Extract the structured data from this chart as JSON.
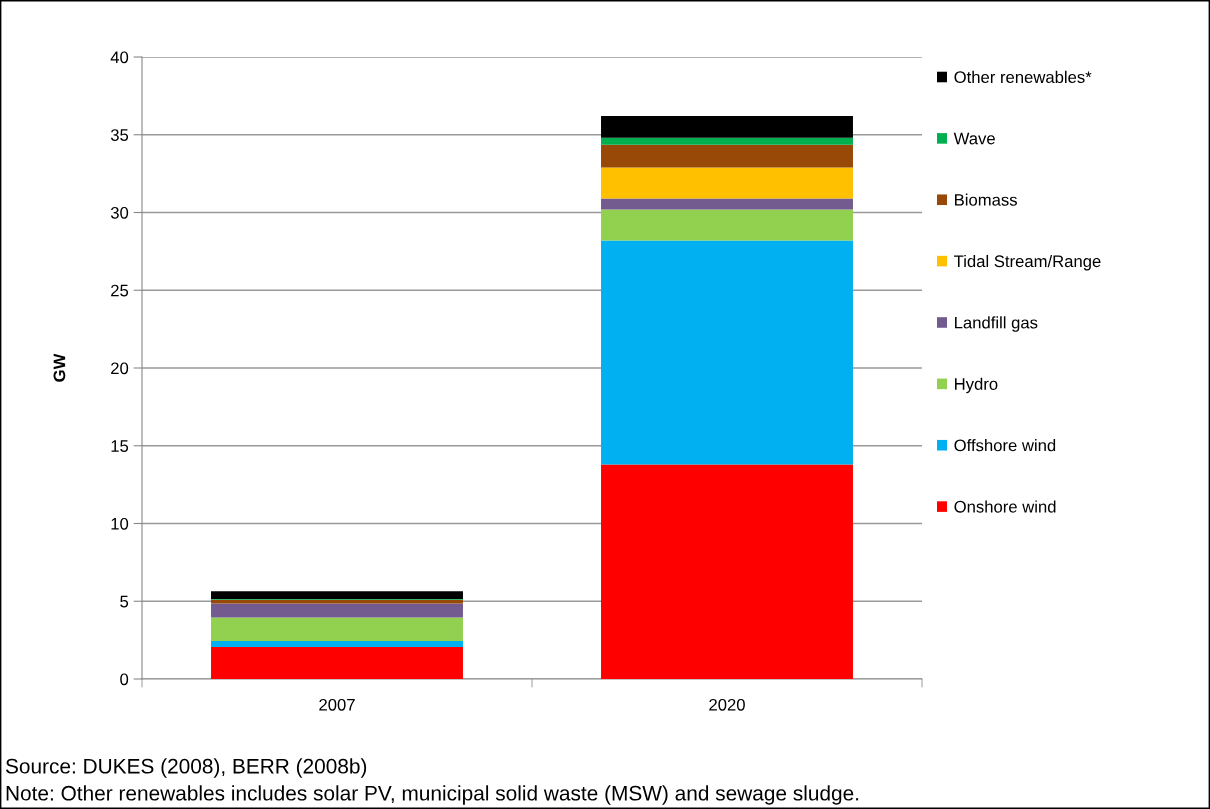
{
  "chart_data": {
    "type": "bar",
    "stacked": true,
    "ylabel": "GW",
    "categories": [
      "2007",
      "2020"
    ],
    "series": [
      {
        "name": "Onshore wind",
        "color": "#ff0000",
        "values": [
          2.05,
          13.8
        ]
      },
      {
        "name": "Offshore wind",
        "color": "#00b0f0",
        "values": [
          0.4,
          14.4
        ]
      },
      {
        "name": "Hydro",
        "color": "#92d050",
        "values": [
          1.5,
          2.0
        ]
      },
      {
        "name": "Landfill gas",
        "color": "#735a8f",
        "values": [
          0.9,
          0.7
        ]
      },
      {
        "name": "Tidal Stream/Range",
        "color": "#ffc000",
        "values": [
          0,
          2.0
        ]
      },
      {
        "name": "Biomass",
        "color": "#984807",
        "values": [
          0.25,
          1.45
        ]
      },
      {
        "name": "Wave",
        "color": "#00b050",
        "values": [
          0.05,
          0.45
        ]
      },
      {
        "name": "Other renewables*",
        "color": "#000000",
        "values": [
          0.5,
          1.4
        ]
      }
    ],
    "ylim": [
      0,
      40
    ],
    "yticks": [
      0,
      5,
      10,
      15,
      20,
      25,
      30,
      35,
      40
    ],
    "grid": "y",
    "legend": "right",
    "annotations": [
      "Source: DUKES (2008), BERR (2008b)",
      "Note: Other renewables includes solar PV, municipal solid waste (MSW) and sewage sludge."
    ]
  }
}
